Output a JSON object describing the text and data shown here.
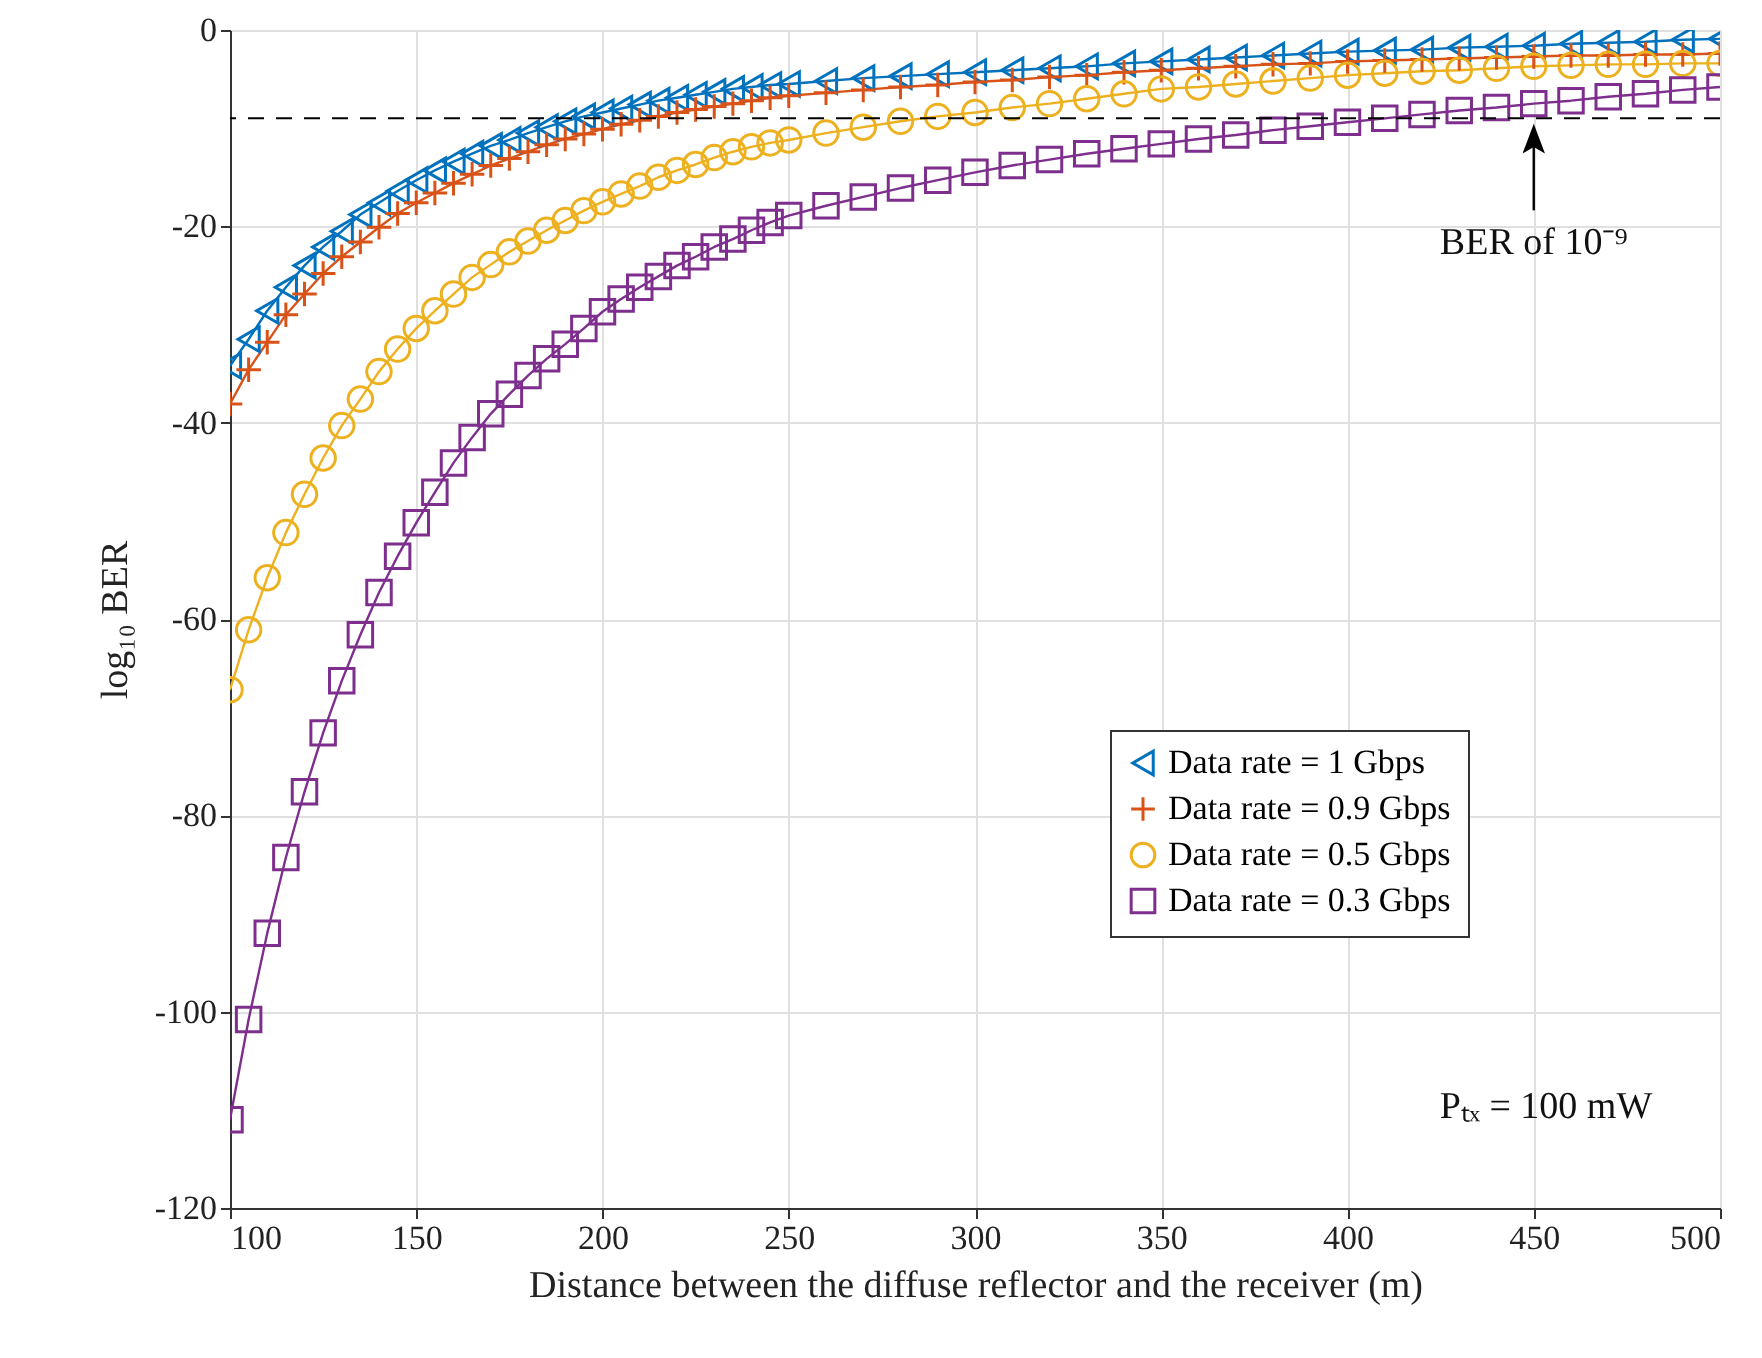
{
  "chart_data": {
    "type": "line",
    "xlabel": "Distance between the diffuse reflector and the receiver (m)",
    "ylabel": "log₁₀ BER",
    "xlim": [
      100,
      500
    ],
    "xticks": [
      100,
      150,
      200,
      250,
      300,
      350,
      400,
      450,
      500
    ],
    "ylim": [
      -120,
      0
    ],
    "yticks": [
      -120,
      -100,
      -80,
      -60,
      -40,
      -20,
      0
    ],
    "grid": true,
    "legend": "bottom right",
    "line_style": "solid",
    "x": [
      100,
      105,
      110,
      115,
      120,
      125,
      130,
      135,
      140,
      145,
      150,
      155,
      160,
      165,
      170,
      175,
      180,
      185,
      190,
      195,
      200,
      205,
      210,
      215,
      220,
      225,
      230,
      235,
      240,
      245,
      250,
      260,
      270,
      280,
      290,
      300,
      310,
      320,
      330,
      340,
      350,
      360,
      370,
      380,
      390,
      400,
      410,
      420,
      430,
      440,
      450,
      460,
      470,
      480,
      490,
      500
    ],
    "series": [
      {
        "name": "Data rate = 1 Gbps",
        "color": "#0072bd",
        "marker": "triangle",
        "values": [
          -34.2,
          -31.5,
          -28.6,
          -26.2,
          -24.0,
          -22.1,
          -20.5,
          -18.8,
          -17.6,
          -16.4,
          -15.3,
          -14.3,
          -13.4,
          -12.6,
          -11.8,
          -11.2,
          -10.5,
          -9.9,
          -9.3,
          -8.8,
          -8.4,
          -8.0,
          -7.6,
          -7.2,
          -6.9,
          -6.6,
          -6.3,
          -6.0,
          -5.8,
          -5.6,
          -5.5,
          -5.2,
          -4.9,
          -4.7,
          -4.5,
          -4.3,
          -4.1,
          -3.9,
          -3.7,
          -3.4,
          -3.2,
          -3.0,
          -2.8,
          -2.6,
          -2.4,
          -2.2,
          -2.1,
          -2.0,
          -1.8,
          -1.7,
          -1.6,
          -1.4,
          -1.3,
          -1.2,
          -1.0,
          -0.9
        ]
      },
      {
        "name": "Data rate = 0.9 Gbps",
        "color": "#d95319",
        "marker": "cross",
        "values": [
          -38.1,
          -34.6,
          -31.8,
          -29.0,
          -26.9,
          -24.8,
          -23.1,
          -21.6,
          -20.1,
          -18.7,
          -17.6,
          -16.6,
          -15.6,
          -14.7,
          -13.8,
          -13.1,
          -12.4,
          -11.7,
          -11.1,
          -10.6,
          -10.1,
          -9.6,
          -9.2,
          -8.8,
          -8.4,
          -8.1,
          -7.8,
          -7.5,
          -7.2,
          -6.9,
          -6.7,
          -6.4,
          -6.1,
          -5.8,
          -5.6,
          -5.3,
          -5.1,
          -4.8,
          -4.6,
          -4.3,
          -4.1,
          -3.9,
          -3.7,
          -3.5,
          -3.4,
          -3.2,
          -3.1,
          -3.0,
          -2.9,
          -2.8,
          -2.7,
          -2.6,
          -2.6,
          -2.5,
          -2.5,
          -2.4
        ]
      },
      {
        "name": "Data rate = 0.5 Gbps",
        "color": "#edb120",
        "marker": "circle",
        "values": [
          -67.2,
          -61.1,
          -55.8,
          -51.2,
          -47.3,
          -43.6,
          -40.3,
          -37.6,
          -34.8,
          -32.5,
          -30.4,
          -28.6,
          -26.9,
          -25.2,
          -23.9,
          -22.6,
          -21.5,
          -20.4,
          -19.4,
          -18.4,
          -17.5,
          -16.7,
          -15.9,
          -15.0,
          -14.3,
          -13.7,
          -13.0,
          -12.4,
          -11.9,
          -11.5,
          -11.2,
          -10.5,
          -9.9,
          -9.3,
          -8.8,
          -8.4,
          -7.9,
          -7.5,
          -7.0,
          -6.5,
          -6.0,
          -5.8,
          -5.5,
          -5.2,
          -4.9,
          -4.6,
          -4.4,
          -4.2,
          -4.1,
          -3.9,
          -3.7,
          -3.6,
          -3.5,
          -3.5,
          -3.4,
          -3.4
        ]
      },
      {
        "name": "Data rate = 0.3 Gbps",
        "color": "#7e2f8e",
        "marker": "square",
        "values": [
          -111,
          -100.8,
          -92.0,
          -84.3,
          -77.6,
          -71.6,
          -66.3,
          -61.6,
          -57.3,
          -53.6,
          -50.2,
          -47.1,
          -44.1,
          -41.5,
          -39.1,
          -37.1,
          -35.2,
          -33.5,
          -32.0,
          -30.4,
          -28.7,
          -27.4,
          -26.2,
          -25.1,
          -24.0,
          -23.1,
          -22.1,
          -21.3,
          -20.4,
          -19.6,
          -18.9,
          -17.9,
          -17.0,
          -16.1,
          -15.3,
          -14.5,
          -13.8,
          -13.2,
          -12.6,
          -12.1,
          -11.6,
          -11.1,
          -10.7,
          -10.2,
          -9.8,
          -9.4,
          -9.0,
          -8.6,
          -8.2,
          -7.9,
          -7.5,
          -7.2,
          -6.8,
          -6.5,
          -6.1,
          -5.8
        ]
      }
    ],
    "ref_lines": [
      {
        "axis": "y",
        "value": -9,
        "color": "#000000",
        "line_style": "dashed"
      }
    ],
    "annotations": [
      {
        "text": "BER of 10⁻⁹",
        "x": 450,
        "y": -9
      },
      "Pₜₓ = 100 mW"
    ]
  }
}
